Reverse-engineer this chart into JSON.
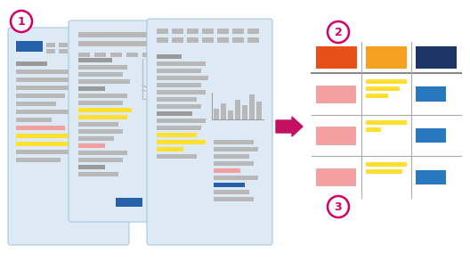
{
  "bg_color": "#ffffff",
  "paper_bg": "#ddeaf5",
  "paper_border": "#a8c8e0",
  "gray": "#b8b8b8",
  "gray_dark": "#9a9a9a",
  "blue_hdr": "#2560a8",
  "orange_red": "#e8501a",
  "orange": "#f5a020",
  "dark_blue": "#1a3566",
  "pink": "#f4a0a0",
  "yellow": "#ffe030",
  "teal_blue": "#2878c0",
  "circle_color": "#d4006a",
  "arrow_color": "#c41060",
  "table_line": "#aaaaaa",
  "table_line_thick": "#888888",
  "white": "#ffffff"
}
